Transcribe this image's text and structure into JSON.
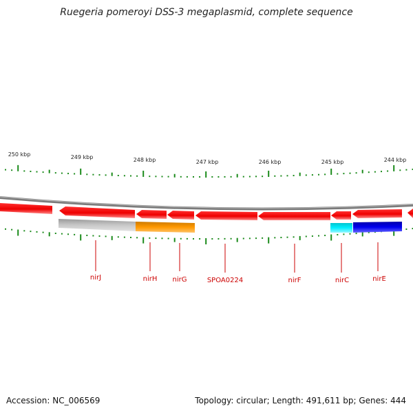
{
  "title": "Ruegeria pomeroyi DSS-3 megaplasmid, complete sequence",
  "footer": {
    "accession": "Accession: NC_006569",
    "info": "Topology: circular; Length: 491,611 bp; Genes: 444"
  },
  "scale_labels": [
    "250 kbp",
    "249 kbp",
    "248 kbp",
    "247 kbp",
    "246 kbp",
    "245 kbp",
    "244 kbp"
  ],
  "gene_labels": [
    "nirJ",
    "nirH",
    "nirG",
    "SPOA0224",
    "nirF",
    "nirC",
    "nirE"
  ],
  "colors": {
    "gene": "#ff0000",
    "label": "#cc0000",
    "tick": "#008000",
    "backbone": "#808080",
    "grey_block": "#c0c0c0",
    "orange_block": "#ff9900",
    "cyan_block": "#00e5ee",
    "blue_block": "#0000ee"
  }
}
